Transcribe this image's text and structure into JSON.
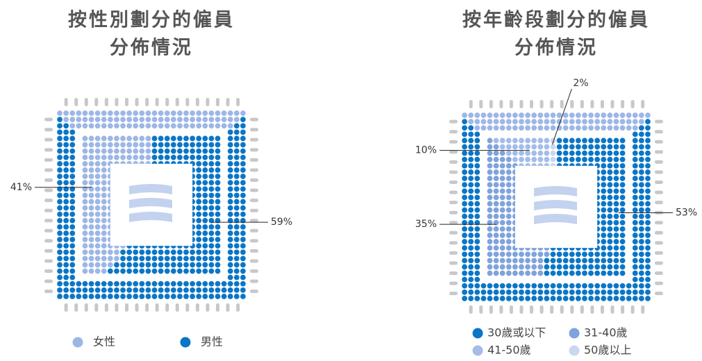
{
  "chart_data": [
    {
      "type": "pie",
      "title": [
        "按性別劃分的僱員",
        "分佈情況"
      ],
      "direction": "counterclockwise",
      "series": [
        {
          "name": "女性",
          "color": "#9db7e5",
          "values": [
            41
          ],
          "value_labels": [
            "41%"
          ]
        },
        {
          "name": "男性",
          "color": "#0b76c6",
          "values": [
            59
          ],
          "value_labels": [
            "59%"
          ]
        }
      ]
    },
    {
      "type": "pie",
      "title": [
        "按年齡段劃分的僱員",
        "分佈情況"
      ],
      "direction": "clockwise",
      "series": [
        {
          "name": "30歲或以下",
          "color": "#0b76c6",
          "values": [
            53
          ],
          "value_labels": [
            "53%"
          ]
        },
        {
          "name": "31-40歲",
          "color": "#7fa3dc",
          "values": [
            35
          ],
          "value_labels": [
            "35%"
          ]
        },
        {
          "name": "41-50歲",
          "color": "#a3bde8",
          "values": [
            10
          ],
          "value_labels": [
            "10%"
          ]
        },
        {
          "name": "50歲以上",
          "color": "#c9d7f1",
          "values": [
            2
          ],
          "value_labels": [
            "2%"
          ]
        }
      ]
    }
  ]
}
